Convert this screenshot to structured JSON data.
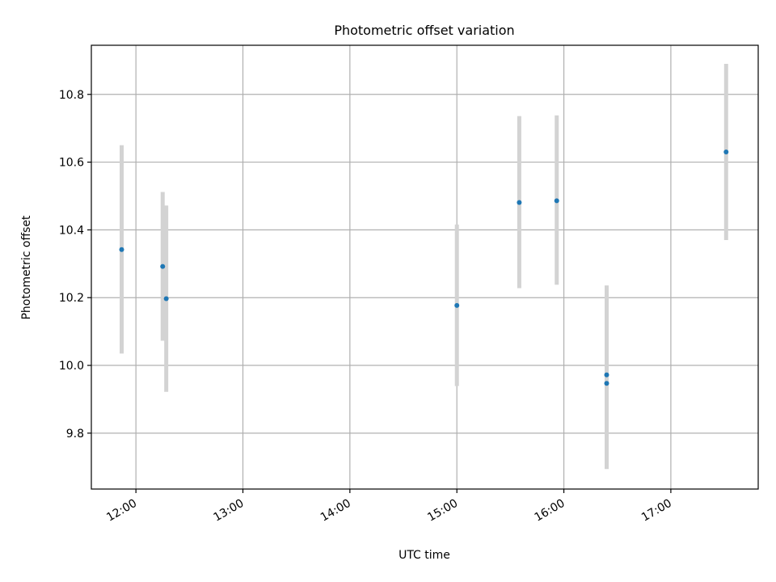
{
  "chart_data": {
    "type": "scatter",
    "title": "Photometric offset variation",
    "xlabel": "UTC time",
    "ylabel": "Photometric offset",
    "x_ticks": [
      "12:00",
      "13:00",
      "14:00",
      "15:00",
      "16:00",
      "17:00"
    ],
    "y_ticks": [
      "9.8",
      "10.0",
      "10.2",
      "10.4",
      "10.6",
      "10.8"
    ],
    "xlim": [
      "11:35",
      "17:49"
    ],
    "ylim": [
      9.635,
      10.945
    ],
    "grid": true,
    "points": [
      {
        "x": "11:52",
        "y": 10.342,
        "yerr_low": 10.035,
        "yerr_high": 10.65
      },
      {
        "x": "12:15",
        "y": 10.292,
        "yerr_low": 10.073,
        "yerr_high": 10.512
      },
      {
        "x": "12:17",
        "y": 10.197,
        "yerr_low": 9.922,
        "yerr_high": 10.472
      },
      {
        "x": "15:00",
        "y": 10.177,
        "yerr_low": 9.939,
        "yerr_high": 10.416
      },
      {
        "x": "15:35",
        "y": 10.481,
        "yerr_low": 10.228,
        "yerr_high": 10.736
      },
      {
        "x": "15:56",
        "y": 10.486,
        "yerr_low": 10.238,
        "yerr_high": 10.738
      },
      {
        "x": "16:24",
        "y": 9.972,
        "yerr_low": 9.712,
        "yerr_high": 10.236
      },
      {
        "x": "16:24",
        "y": 9.947,
        "yerr_low": 9.694,
        "yerr_high": 10.202
      },
      {
        "x": "17:31",
        "y": 10.63,
        "yerr_low": 10.37,
        "yerr_high": 10.89
      }
    ],
    "colors": {
      "point": "#1f77b4",
      "errorbar": "#d3d3d3",
      "grid": "#b0b0b0",
      "axes": "#000000"
    }
  }
}
